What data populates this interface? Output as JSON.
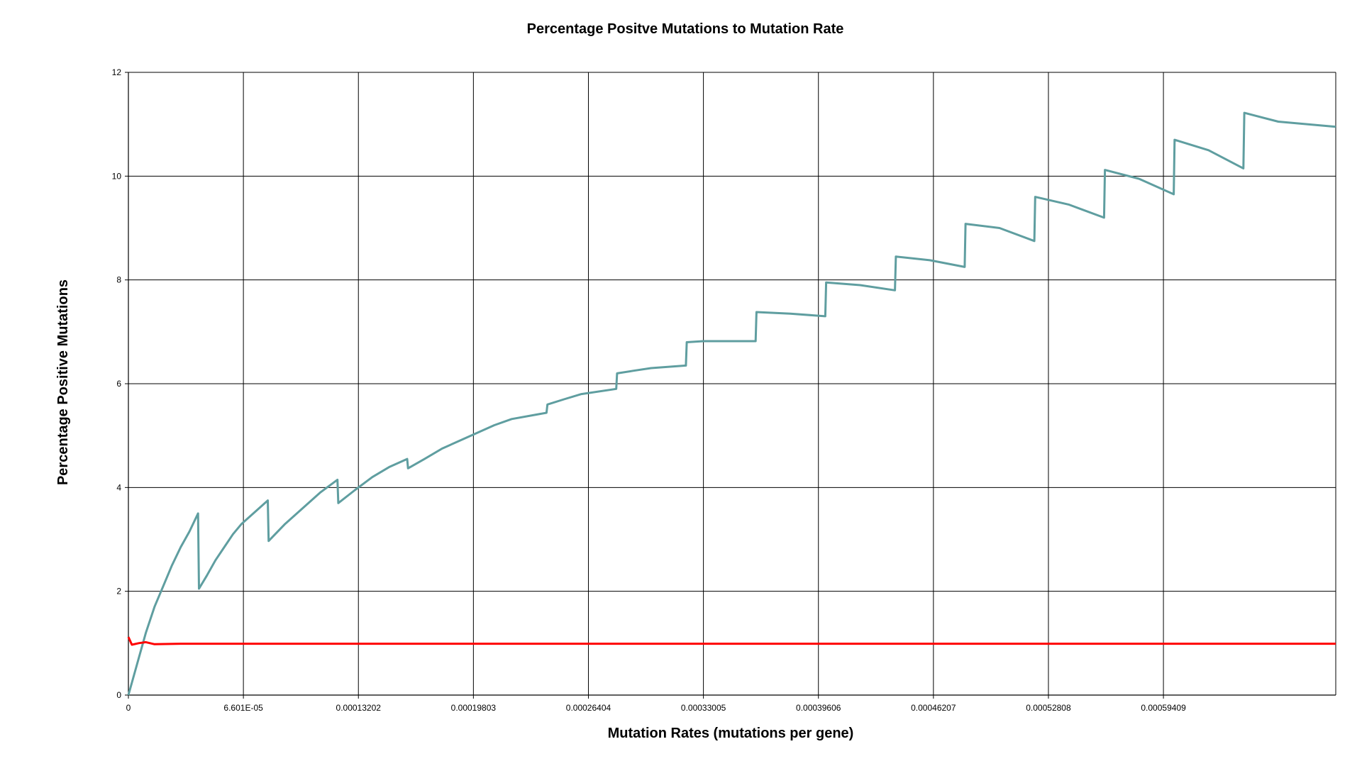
{
  "chart_data": {
    "type": "line",
    "title": "Percentage Positve Mutations to Mutation Rate",
    "xlabel": "Mutation Rates (mutations per gene)",
    "ylabel": "Percentage Positive Mutations",
    "xlim": [
      0,
      0.000693
    ],
    "ylim": [
      0,
      12
    ],
    "grid": true,
    "x_ticks": [
      {
        "value": 0,
        "label": "0"
      },
      {
        "value": 6.601e-05,
        "label": "6.601E-05"
      },
      {
        "value": 0.00013202,
        "label": "0.00013202"
      },
      {
        "value": 0.00019803,
        "label": "0.00019803"
      },
      {
        "value": 0.00026404,
        "label": "0.00026404"
      },
      {
        "value": 0.00033005,
        "label": "0.00033005"
      },
      {
        "value": 0.00039606,
        "label": "0.00039606"
      },
      {
        "value": 0.00046207,
        "label": "0.00046207"
      },
      {
        "value": 0.00052808,
        "label": "0.00052808"
      },
      {
        "value": 0.00059409,
        "label": "0.00059409"
      }
    ],
    "y_ticks": [
      {
        "value": 0,
        "label": "0"
      },
      {
        "value": 2,
        "label": "2"
      },
      {
        "value": 4,
        "label": "4"
      },
      {
        "value": 6,
        "label": "6"
      },
      {
        "value": 8,
        "label": "8"
      },
      {
        "value": 10,
        "label": "10"
      },
      {
        "value": 12,
        "label": "12"
      }
    ],
    "series": [
      {
        "color": "#5f9ea0",
        "points": [
          [
            0,
            0
          ],
          [
            5e-06,
            0.6
          ],
          [
            1e-05,
            1.2
          ],
          [
            1.5e-05,
            1.7
          ],
          [
            2e-05,
            2.1
          ],
          [
            2.5e-05,
            2.5
          ],
          [
            3e-05,
            2.85
          ],
          [
            3.5e-05,
            3.15
          ],
          [
            4e-05,
            3.5
          ],
          [
            4.05e-05,
            2.05
          ],
          [
            4.5e-05,
            2.3
          ],
          [
            5e-05,
            2.6
          ],
          [
            5.5e-05,
            2.85
          ],
          [
            6e-05,
            3.1
          ],
          [
            6.5e-05,
            3.3
          ],
          [
            7e-05,
            3.45
          ],
          [
            7.5e-05,
            3.6
          ],
          [
            8e-05,
            3.75
          ],
          [
            8.05e-05,
            2.97
          ],
          [
            9e-05,
            3.3
          ],
          [
            0.0001,
            3.6
          ],
          [
            0.00011,
            3.9
          ],
          [
            0.00012,
            4.15
          ],
          [
            0.0001205,
            3.7
          ],
          [
            0.00013,
            3.95
          ],
          [
            0.00014,
            4.2
          ],
          [
            0.00015,
            4.4
          ],
          [
            0.00016,
            4.55
          ],
          [
            0.0001605,
            4.37
          ],
          [
            0.00017,
            4.55
          ],
          [
            0.00018,
            4.75
          ],
          [
            0.00019,
            4.9
          ],
          [
            0.0002,
            5.05
          ],
          [
            0.00021,
            5.2
          ],
          [
            0.00022,
            5.32
          ],
          [
            0.00024,
            5.44
          ],
          [
            0.0002405,
            5.6
          ],
          [
            0.00025,
            5.7
          ],
          [
            0.00026,
            5.8
          ],
          [
            0.00028,
            5.9
          ],
          [
            0.0002805,
            6.2
          ],
          [
            0.00029,
            6.25
          ],
          [
            0.0003,
            6.3
          ],
          [
            0.00032,
            6.35
          ],
          [
            0.0003205,
            6.8
          ],
          [
            0.00033,
            6.82
          ],
          [
            0.00036,
            6.82
          ],
          [
            0.0003605,
            7.38
          ],
          [
            0.00038,
            7.35
          ],
          [
            0.0004,
            7.3
          ],
          [
            0.0004005,
            7.95
          ],
          [
            0.00042,
            7.9
          ],
          [
            0.00044,
            7.8
          ],
          [
            0.0004405,
            8.45
          ],
          [
            0.00046,
            8.38
          ],
          [
            0.00048,
            8.25
          ],
          [
            0.0004805,
            9.08
          ],
          [
            0.0005,
            9.0
          ],
          [
            0.00052,
            8.75
          ],
          [
            0.0005205,
            9.6
          ],
          [
            0.00054,
            9.45
          ],
          [
            0.00056,
            9.2
          ],
          [
            0.0005605,
            10.12
          ],
          [
            0.00058,
            9.95
          ],
          [
            0.0006,
            9.65
          ],
          [
            0.0006005,
            10.7
          ],
          [
            0.00062,
            10.5
          ],
          [
            0.00064,
            10.15
          ],
          [
            0.0006405,
            11.22
          ],
          [
            0.00066,
            11.05
          ],
          [
            0.000693,
            10.95
          ]
        ]
      },
      {
        "color": "#ff0000",
        "points": [
          [
            0,
            1.12
          ],
          [
            2e-06,
            0.97
          ],
          [
            6e-06,
            1.0
          ],
          [
            1e-05,
            1.02
          ],
          [
            1.5e-05,
            0.98
          ],
          [
            3e-05,
            0.99
          ],
          [
            6e-05,
            0.99
          ],
          [
            0.0001,
            0.99
          ],
          [
            0.0002,
            0.99
          ],
          [
            0.0003,
            0.99
          ],
          [
            0.0004,
            0.99
          ],
          [
            0.0005,
            0.99
          ],
          [
            0.0006,
            0.99
          ],
          [
            0.000693,
            0.99
          ]
        ]
      }
    ]
  }
}
